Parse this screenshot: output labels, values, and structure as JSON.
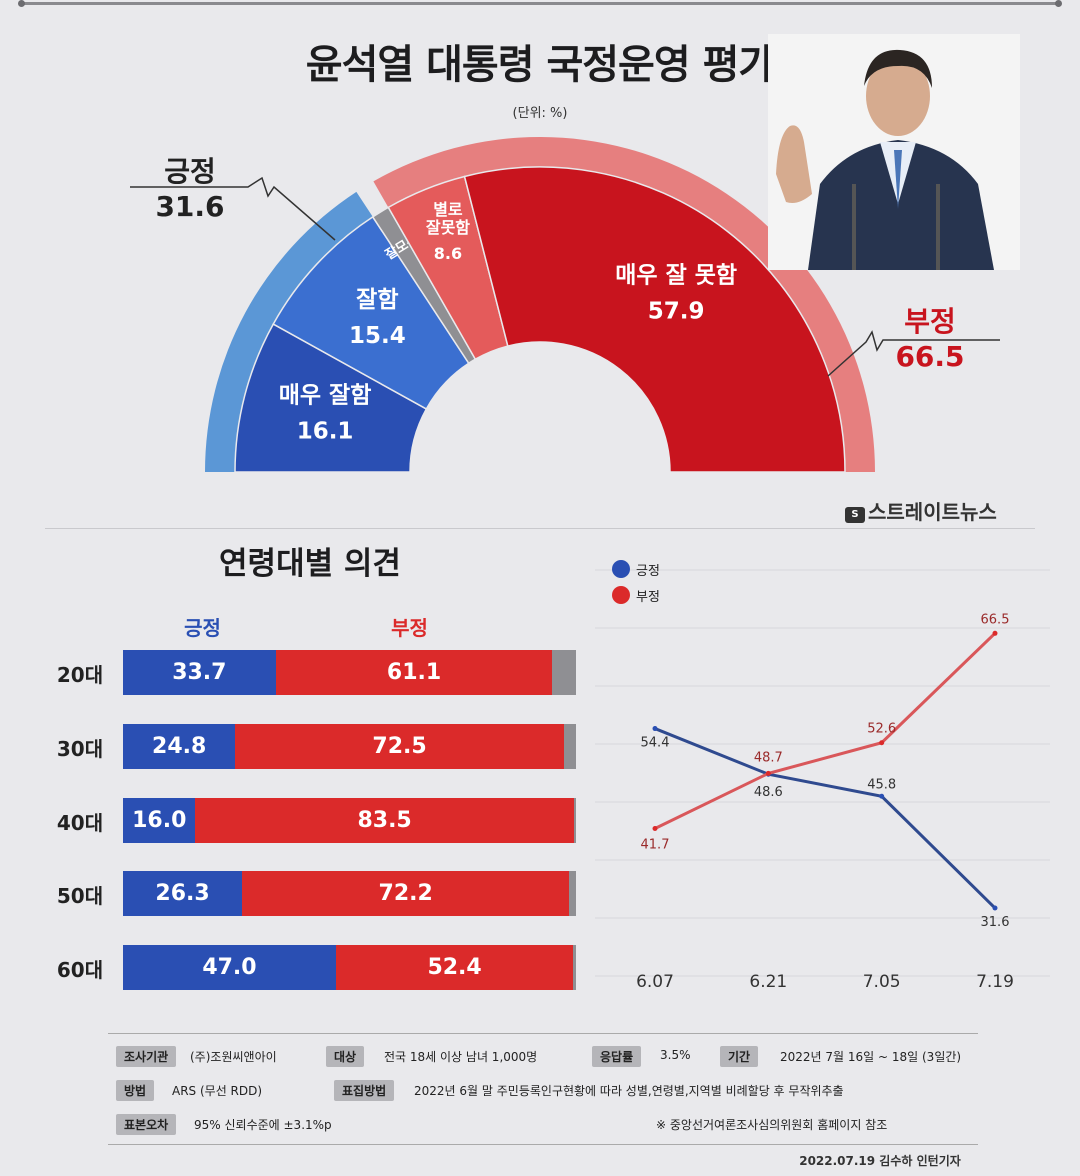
{
  "title": "윤석열 대통령 국정운영 평가",
  "unit": "(단위: %)",
  "source_logo": "스트레이트뉴스",
  "colors": {
    "blue": "#2a4fb3",
    "blue_light": "#5b97d6",
    "red": "#db2a2a",
    "red_dark": "#c8141e",
    "red_light": "#e45b5b",
    "gray": "#8f8f93"
  },
  "summary": {
    "positive": {
      "label": "긍정",
      "value": "31.6"
    },
    "negative": {
      "label": "부정",
      "value": "66.5"
    }
  },
  "chart_data": [
    {
      "type": "pie",
      "title": "윤석열 대통령 국정운영 평가",
      "subtitle": "(단위: %)",
      "categories": [
        "매우 잘함",
        "잘함",
        "잘모름",
        "별로 잘못함",
        "매우 잘 못함"
      ],
      "values": [
        16.1,
        15.4,
        1.9,
        8.6,
        57.9
      ],
      "labels": [
        "매우 잘함",
        "잘함",
        "잘모름",
        "별로 잘못함",
        "매우 잘 못함"
      ],
      "value_labels": [
        "16.1",
        "15.4",
        "",
        "8.6",
        "57.9"
      ],
      "group_totals": [
        {
          "name": "긍정",
          "value": 31.6
        },
        {
          "name": "부정",
          "value": 66.5
        }
      ]
    },
    {
      "type": "bar",
      "title": "연령대별 의견",
      "categories": [
        "20대",
        "30대",
        "40대",
        "50대",
        "60대"
      ],
      "series": [
        {
          "name": "긍정",
          "values": [
            33.7,
            24.8,
            16.0,
            26.3,
            47.0
          ],
          "labels": [
            "33.7",
            "24.8",
            "16.0",
            "26.3",
            "47.0"
          ]
        },
        {
          "name": "부정",
          "values": [
            61.1,
            72.5,
            83.5,
            72.2,
            52.4
          ],
          "labels": [
            "61.1",
            "72.5",
            "83.5",
            "72.2",
            "52.4"
          ]
        }
      ],
      "stacked": true
    },
    {
      "type": "line",
      "x": [
        "6.07",
        "6.21",
        "7.05",
        "7.19"
      ],
      "series": [
        {
          "name": "긍정",
          "values": [
            54.4,
            48.6,
            45.8,
            31.6
          ],
          "labels": [
            "54.4",
            "48.6",
            "45.8",
            "31.6"
          ]
        },
        {
          "name": "부정",
          "values": [
            41.7,
            48.7,
            52.6,
            66.5
          ],
          "labels": [
            "41.7",
            "48.7",
            "52.6",
            "66.5"
          ]
        }
      ],
      "ylim": [
        25,
        72
      ],
      "grid": true,
      "legend": "top-left"
    }
  ],
  "footer": {
    "agency_tag": "조사기관",
    "agency": "(주)조원씨앤아이",
    "target_tag": "대상",
    "target": "전국 18세 이상 남녀 1,000명",
    "response_tag": "응답률",
    "response": "3.5%",
    "period_tag": "기간",
    "period": "2022년 7월 16일 ~ 18일 (3일간)",
    "method_tag": "방법",
    "method": "ARS (무선 RDD)",
    "sampling_tag": "표집방법",
    "sampling": "2022년 6월 말 주민등록인구현황에 따라 성별,연령별,지역별 비례할당 후 무작위추출",
    "error_tag": "표본오차",
    "error": "95% 신뢰수준에 ±3.1%p",
    "note": "※ 중앙선거여론조사심의위원회 홈페이지 참조"
  },
  "credit": "2022.07.19 김수하 인턴기자"
}
